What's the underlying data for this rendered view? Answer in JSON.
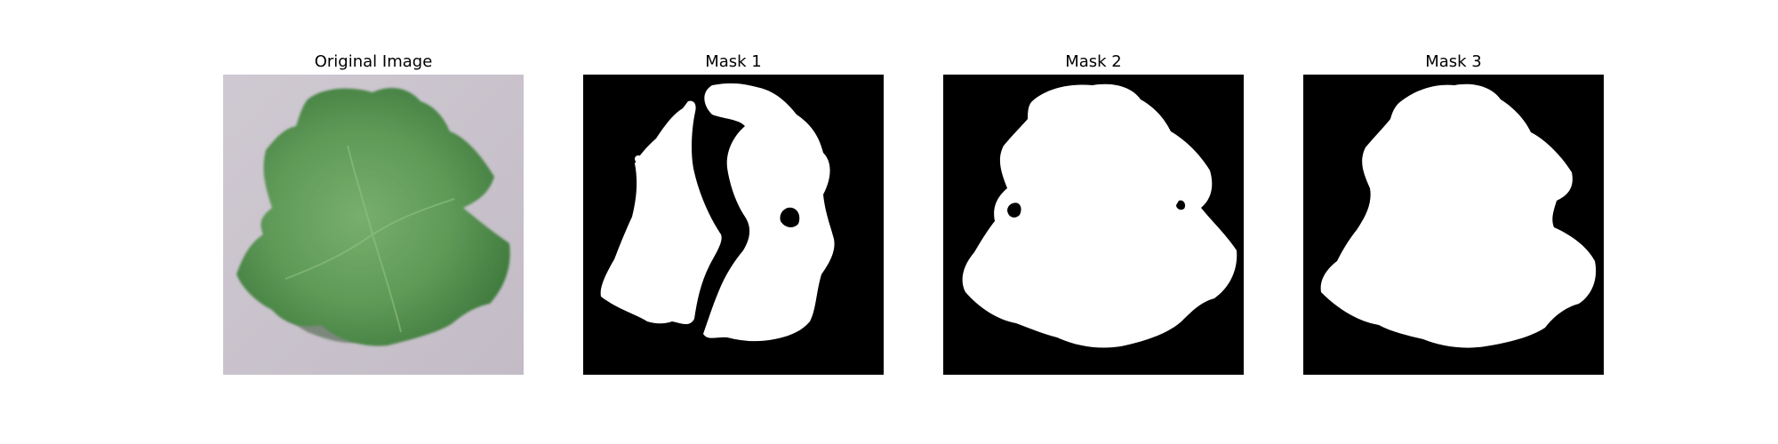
{
  "panels": [
    {
      "title": "Original Image"
    },
    {
      "title": "Mask 1"
    },
    {
      "title": "Mask 2"
    },
    {
      "title": "Mask 3"
    }
  ],
  "colors": {
    "background": "#ffffff",
    "mask_foreground": "#ffffff",
    "mask_background": "#000000",
    "leaf_green": "#5f9a58",
    "photo_background": "#c9c3cc"
  }
}
